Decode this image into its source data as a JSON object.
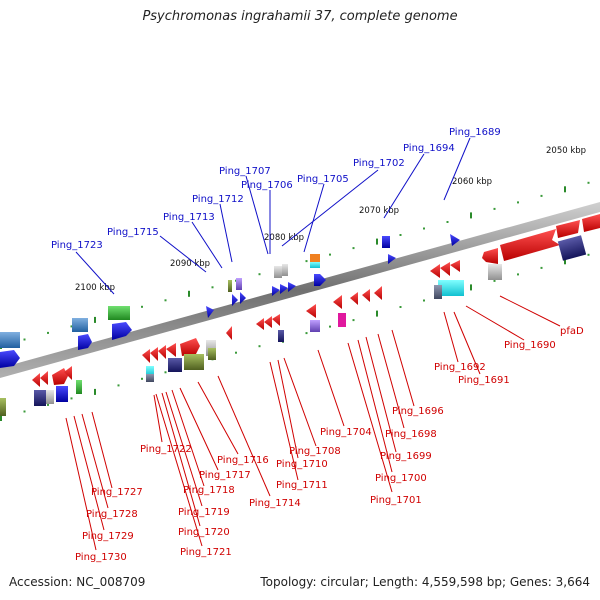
{
  "title": "Psychromonas ingrahamii 37, complete genome",
  "footer": {
    "accession": "Accession: NC_008709",
    "stats": "Topology: circular; Length: 4,559,598 bp; Genes: 3,664"
  },
  "scale_labels": [
    "2050 kbp",
    "2060 kbp",
    "2070 kbp",
    "2080 kbp",
    "2090 kbp",
    "2100 kbp"
  ],
  "gene_labels_top": [
    "Ping_1689",
    "Ping_1694",
    "Ping_1702",
    "Ping_1705",
    "Ping_1706",
    "Ping_1707",
    "Ping_1712",
    "Ping_1713",
    "Ping_1715",
    "Ping_1723"
  ],
  "gene_labels_bottom": [
    "pfaD",
    "Ping_1690",
    "Ping_1691",
    "Ping_1692",
    "Ping_1696",
    "Ping_1698",
    "Ping_1699",
    "Ping_1700",
    "Ping_1701",
    "Ping_1704",
    "Ping_1708",
    "Ping_1710",
    "Ping_1711",
    "Ping_1714",
    "Ping_1716",
    "Ping_1717",
    "Ping_1718",
    "Ping_1719",
    "Ping_1720",
    "Ping_1721",
    "Ping_1722",
    "Ping_1727",
    "Ping_1728",
    "Ping_1729",
    "Ping_1730"
  ],
  "colors": {
    "forward": "#1010c8",
    "reverse": "#d00000",
    "backbone": "#808080",
    "tick": "#2a8a2a"
  }
}
